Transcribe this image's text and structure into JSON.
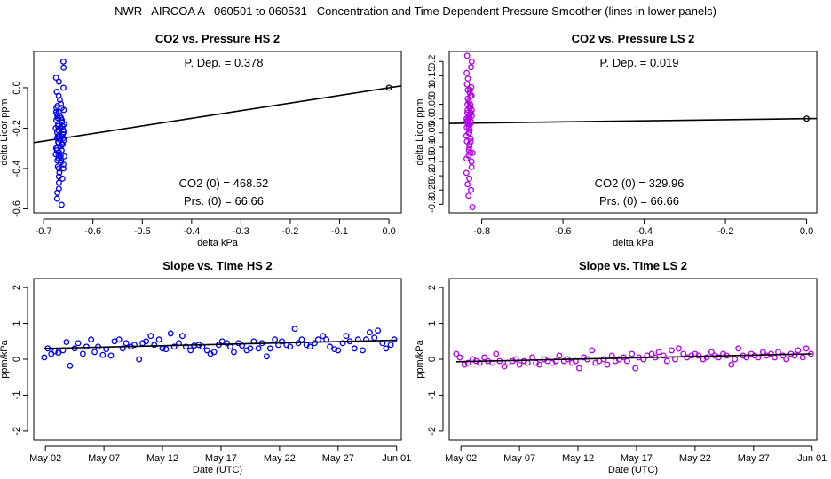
{
  "page_title": "NWR   AIRCOA A   060501 to 060531   Concentration and Time Dependent Pressure Smoother (lines in lower panels)",
  "colors": {
    "blue": "#0000ee",
    "purple": "#b000e8",
    "black": "#000000"
  },
  "chart_data": [
    {
      "id": "hs-pressure",
      "type": "scatter",
      "title": "CO2 vs. Pressure HS 2",
      "xlabel": "delta kPa",
      "ylabel": "delta Licor ppm",
      "xlim": [
        -0.72,
        0.025
      ],
      "ylim": [
        -0.62,
        0.18
      ],
      "xticks": [
        -0.7,
        -0.6,
        -0.5,
        -0.4,
        -0.3,
        -0.2,
        -0.1,
        0.0
      ],
      "xtick_labels": [
        "-0.7",
        "-0.6",
        "-0.5",
        "-0.4",
        "-0.3",
        "-0.2",
        "-0.1",
        "0.0"
      ],
      "yticks": [
        0.0,
        -0.2,
        -0.4,
        -0.6
      ],
      "ytick_labels": [
        "0.0",
        "-0.2",
        "-0.4",
        "-0.6"
      ],
      "color": "#0000ee",
      "fit_line": {
        "slope": 0.378,
        "intercept": 0.0
      },
      "reference_point": [
        0.0,
        0.0
      ],
      "cluster": {
        "x_center": -0.667,
        "x_spread": 0.009,
        "y_values": [
          0.13,
          0.1,
          0.05,
          0.03,
          0.0,
          -0.02,
          -0.04,
          -0.06,
          -0.08,
          -0.09,
          -0.1,
          -0.11,
          -0.12,
          -0.13,
          -0.14,
          -0.15,
          -0.16,
          -0.17,
          -0.18,
          -0.19,
          -0.2,
          -0.21,
          -0.22,
          -0.23,
          -0.24,
          -0.25,
          -0.26,
          -0.27,
          -0.28,
          -0.29,
          -0.3,
          -0.31,
          -0.32,
          -0.33,
          -0.34,
          -0.35,
          -0.36,
          -0.37,
          -0.38,
          -0.39,
          -0.4,
          -0.42,
          -0.44,
          -0.45,
          -0.47,
          -0.5,
          -0.52,
          -0.55,
          -0.58,
          -0.12,
          -0.14,
          -0.16,
          -0.19,
          -0.22,
          -0.25,
          -0.28,
          -0.31,
          -0.34,
          -0.2,
          -0.18,
          -0.24,
          -0.27,
          -0.3,
          -0.33,
          -0.15,
          -0.1,
          -0.36,
          -0.4,
          -0.26,
          -0.21
        ]
      },
      "annotations": {
        "p_dep": "P. Dep. =  0.378",
        "co2_0": "CO2 (0) =  468.52",
        "prs_0": "Prs. (0) =  66.66"
      }
    },
    {
      "id": "ls-pressure",
      "type": "scatter",
      "title": "CO2 vs. Pressure LS 2",
      "xlabel": "delta kPa",
      "ylabel": "delta Licor ppm",
      "xlim": [
        -0.88,
        0.025
      ],
      "ylim": [
        -0.33,
        0.235
      ],
      "xticks": [
        -0.8,
        -0.6,
        -0.4,
        -0.2,
        0.0
      ],
      "xtick_labels": [
        "-0.8",
        "-0.6",
        "-0.4",
        "-0.2",
        "0.0"
      ],
      "yticks": [
        0.2,
        0.15,
        0.1,
        0.05,
        0.0,
        -0.05,
        -0.1,
        -0.15,
        -0.2,
        -0.25,
        -0.3
      ],
      "ytick_labels": [
        "0.2",
        "0.15",
        "0.1",
        "0.05",
        "0.0",
        "-0.05",
        "-0.1",
        "-0.15",
        "-0.2",
        "-0.25",
        "-0.3"
      ],
      "color": "#b000e8",
      "fit_line": {
        "slope": 0.019,
        "intercept": 0.0
      },
      "reference_point": [
        0.0,
        0.0
      ],
      "cluster": {
        "x_center": -0.83,
        "x_spread": 0.008,
        "y_values": [
          0.22,
          0.2,
          0.18,
          0.16,
          0.14,
          0.12,
          0.11,
          0.1,
          0.09,
          0.08,
          0.07,
          0.06,
          0.05,
          0.04,
          0.03,
          0.02,
          0.01,
          0.0,
          -0.01,
          -0.02,
          -0.03,
          -0.04,
          -0.05,
          -0.06,
          -0.07,
          -0.08,
          -0.09,
          -0.1,
          -0.11,
          -0.12,
          -0.13,
          -0.14,
          -0.15,
          -0.17,
          -0.19,
          -0.21,
          -0.23,
          -0.25,
          -0.27,
          -0.31,
          0.05,
          0.03,
          0.01,
          -0.01,
          -0.03,
          0.02,
          0.0,
          -0.02,
          0.04,
          0.06,
          -0.05,
          0.08,
          -0.08,
          0.1,
          -0.12,
          0.0,
          0.01,
          -0.01,
          0.02,
          -0.02
        ]
      },
      "annotations": {
        "p_dep": "P. Dep. =  0.019",
        "co2_0": "CO2 (0) =  329.96",
        "prs_0": "Prs. (0) =  66.66"
      }
    },
    {
      "id": "hs-slope",
      "type": "scatter",
      "title": "Slope vs. TIme HS 2",
      "xlabel": "Date (UTC)",
      "ylabel": "ppm/kPa",
      "xlim": [
        0.0,
        31.4
      ],
      "ylim": [
        -2.25,
        2.25
      ],
      "xticks": [
        1,
        6,
        11,
        16,
        21,
        26,
        31
      ],
      "xtick_labels": [
        "May 02",
        "May 07",
        "May 12",
        "May 17",
        "May 22",
        "May 27",
        "Jun 01"
      ],
      "yticks": [
        -2,
        -1,
        0,
        1,
        2
      ],
      "ytick_labels": [
        "-2",
        "-1",
        "0",
        "1",
        "2"
      ],
      "color": "#0000ee",
      "smoother": {
        "x": [
          0.9,
          31.0
        ],
        "y": [
          0.3,
          0.53
        ]
      },
      "x": [
        0.9,
        1.2,
        1.5,
        1.8,
        2.1,
        2.5,
        2.8,
        3.1,
        3.5,
        3.8,
        4.2,
        4.5,
        4.9,
        5.2,
        5.5,
        5.9,
        6.2,
        6.6,
        6.9,
        7.3,
        7.6,
        7.9,
        8.3,
        8.6,
        9.0,
        9.3,
        9.6,
        10.0,
        10.3,
        10.7,
        11.0,
        11.3,
        11.7,
        12.0,
        12.4,
        12.7,
        13.0,
        13.4,
        13.7,
        14.1,
        14.4,
        14.8,
        15.1,
        15.4,
        15.8,
        16.1,
        16.5,
        16.8,
        17.1,
        17.5,
        17.8,
        18.2,
        18.5,
        18.8,
        19.2,
        19.5,
        19.9,
        20.2,
        20.6,
        20.9,
        21.2,
        21.6,
        21.9,
        22.3,
        22.6,
        22.9,
        23.3,
        23.6,
        24.0,
        24.3,
        24.7,
        25.0,
        25.3,
        25.7,
        26.0,
        26.4,
        26.7,
        27.0,
        27.4,
        27.7,
        28.1,
        28.4,
        28.7,
        29.1,
        29.4,
        29.8,
        30.1,
        30.5,
        30.8
      ],
      "values": [
        0.05,
        0.3,
        0.15,
        0.22,
        0.18,
        0.25,
        0.48,
        -0.18,
        0.3,
        0.45,
        0.15,
        0.35,
        0.55,
        0.2,
        0.35,
        0.12,
        0.28,
        0.1,
        0.5,
        0.55,
        0.3,
        0.45,
        0.35,
        0.4,
        0.0,
        0.45,
        0.5,
        0.65,
        0.4,
        0.55,
        0.3,
        0.28,
        0.72,
        0.35,
        0.45,
        0.65,
        0.35,
        0.25,
        0.38,
        0.4,
        0.35,
        0.25,
        0.15,
        0.2,
        0.4,
        0.5,
        0.45,
        0.35,
        0.2,
        0.45,
        0.38,
        0.25,
        0.3,
        0.5,
        0.3,
        0.45,
        0.08,
        0.3,
        0.55,
        0.4,
        0.5,
        0.4,
        0.35,
        0.85,
        0.45,
        0.55,
        0.4,
        0.35,
        0.45,
        0.55,
        0.65,
        0.55,
        0.35,
        0.28,
        0.25,
        0.45,
        0.65,
        0.5,
        0.3,
        0.55,
        0.25,
        0.55,
        0.75,
        0.6,
        0.8,
        0.45,
        0.3,
        0.4,
        0.55
      ]
    },
    {
      "id": "ls-slope",
      "type": "scatter",
      "title": "Slope vs. TIme LS 2",
      "xlabel": "Date (UTC)",
      "ylabel": "ppm/kPa",
      "xlim": [
        0.0,
        31.4
      ],
      "ylim": [
        -2.25,
        2.25
      ],
      "xticks": [
        1,
        6,
        11,
        16,
        21,
        26,
        31
      ],
      "xtick_labels": [
        "May 02",
        "May 07",
        "May 12",
        "May 17",
        "May 22",
        "May 27",
        "Jun 01"
      ],
      "yticks": [
        -2,
        -1,
        0,
        1,
        2
      ],
      "ytick_labels": [
        "-2",
        "-1",
        "0",
        "1",
        "2"
      ],
      "color": "#b000e8",
      "smoother": {
        "x": [
          0.6,
          31.0
        ],
        "y": [
          -0.07,
          0.15
        ]
      },
      "x": [
        0.6,
        0.9,
        1.3,
        1.6,
        2.0,
        2.3,
        2.6,
        3.0,
        3.3,
        3.7,
        4.0,
        4.3,
        4.7,
        5.0,
        5.4,
        5.7,
        6.0,
        6.4,
        6.7,
        7.1,
        7.4,
        7.7,
        8.1,
        8.4,
        8.8,
        9.1,
        9.4,
        9.8,
        10.1,
        10.5,
        10.8,
        11.1,
        11.5,
        11.8,
        12.2,
        12.5,
        12.8,
        13.2,
        13.5,
        13.9,
        14.2,
        14.5,
        14.9,
        15.2,
        15.6,
        15.9,
        16.2,
        16.6,
        16.9,
        17.3,
        17.6,
        17.9,
        18.3,
        18.6,
        19.0,
        19.3,
        19.6,
        20.0,
        20.3,
        20.7,
        21.0,
        21.3,
        21.7,
        22.0,
        22.4,
        22.7,
        23.0,
        23.4,
        23.7,
        24.1,
        24.4,
        24.7,
        25.1,
        25.4,
        25.8,
        26.1,
        26.4,
        26.8,
        27.1,
        27.5,
        27.8,
        28.1,
        28.5,
        28.8,
        29.2,
        29.5,
        29.8,
        30.2,
        30.5,
        30.9
      ],
      "values": [
        0.15,
        0.05,
        -0.15,
        -0.1,
        0.0,
        -0.05,
        -0.1,
        0.05,
        -0.05,
        -0.1,
        0.15,
        -0.05,
        -0.2,
        -0.1,
        -0.05,
        0.0,
        -0.15,
        -0.05,
        -0.1,
        0.05,
        -0.1,
        -0.15,
        0.0,
        -0.05,
        -0.1,
        -0.05,
        0.1,
        -0.05,
        0.0,
        -0.1,
        -0.05,
        -0.25,
        0.05,
        0.0,
        0.25,
        -0.1,
        -0.05,
        0.0,
        -0.15,
        0.1,
        -0.05,
        0.0,
        0.05,
        -0.05,
        0.15,
        -0.25,
        0.05,
        0.0,
        0.1,
        0.15,
        0.05,
        0.2,
        0.1,
        -0.05,
        0.25,
        0.0,
        0.3,
        0.15,
        0.05,
        0.1,
        0.15,
        0.1,
        0.0,
        0.05,
        0.2,
        0.1,
        0.05,
        0.15,
        0.1,
        -0.15,
        0.0,
        0.3,
        0.1,
        0.05,
        0.15,
        0.1,
        0.05,
        0.2,
        0.1,
        0.15,
        0.05,
        0.2,
        0.1,
        0.0,
        0.15,
        0.1,
        0.25,
        0.05,
        0.3,
        0.15
      ]
    }
  ]
}
